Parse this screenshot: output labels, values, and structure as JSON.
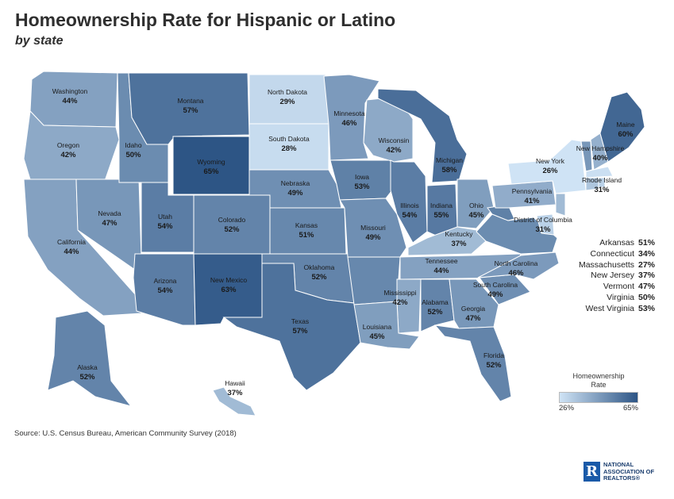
{
  "title": "Homeownership Rate for Hispanic or Latino",
  "subtitle": "by state",
  "source": "Source: U.S. Census Bureau, American Community Survey (2018)",
  "logo": {
    "line1": "NATIONAL",
    "line2": "ASSOCIATION OF",
    "line3": "REALTORS",
    "mark": "R"
  },
  "legend": {
    "title_line1": "Homeownership",
    "title_line2": "Rate",
    "min_label": "26%",
    "max_label": "65%",
    "min": 26,
    "max": 65
  },
  "colors": {
    "low": "#cfe3f5",
    "high": "#2d5585",
    "border": "#ffffff"
  },
  "states": [
    {
      "name": "Washington",
      "value": "44%"
    },
    {
      "name": "Oregon",
      "value": "42%"
    },
    {
      "name": "California",
      "value": "44%"
    },
    {
      "name": "Nevada",
      "value": "47%"
    },
    {
      "name": "Idaho",
      "value": "50%"
    },
    {
      "name": "Montana",
      "value": "57%"
    },
    {
      "name": "Wyoming",
      "value": "65%"
    },
    {
      "name": "Utah",
      "value": "54%"
    },
    {
      "name": "Arizona",
      "value": "54%"
    },
    {
      "name": "Colorado",
      "value": "52%"
    },
    {
      "name": "New Mexico",
      "value": "63%"
    },
    {
      "name": "North Dakota",
      "value": "29%"
    },
    {
      "name": "South Dakota",
      "value": "28%"
    },
    {
      "name": "Nebraska",
      "value": "49%"
    },
    {
      "name": "Kansas",
      "value": "51%"
    },
    {
      "name": "Oklahoma",
      "value": "52%"
    },
    {
      "name": "Texas",
      "value": "57%"
    },
    {
      "name": "Minnesota",
      "value": "46%"
    },
    {
      "name": "Iowa",
      "value": "53%"
    },
    {
      "name": "Missouri",
      "value": "49%"
    },
    {
      "name": "Wisconsin",
      "value": "42%"
    },
    {
      "name": "Illinois",
      "value": "54%"
    },
    {
      "name": "Michigan",
      "value": "58%"
    },
    {
      "name": "Indiana",
      "value": "55%"
    },
    {
      "name": "Ohio",
      "value": "45%"
    },
    {
      "name": "Kentucky",
      "value": "37%"
    },
    {
      "name": "Tennessee",
      "value": "44%"
    },
    {
      "name": "Mississippi",
      "value": "42%"
    },
    {
      "name": "Louisiana",
      "value": "45%"
    },
    {
      "name": "Alabama",
      "value": "52%"
    },
    {
      "name": "Georgia",
      "value": "47%"
    },
    {
      "name": "Florida",
      "value": "52%"
    },
    {
      "name": "South Carolina",
      "value": "49%"
    },
    {
      "name": "North Carolina",
      "value": "46%"
    },
    {
      "name": "Pennsylvania",
      "value": "41%"
    },
    {
      "name": "New York",
      "value": "26%"
    },
    {
      "name": "Maine",
      "value": "60%"
    },
    {
      "name": "New Hampshire",
      "value": "40%"
    },
    {
      "name": "Rhode Island",
      "value": "31%"
    },
    {
      "name": "District of Columbia",
      "value": "31%"
    },
    {
      "name": "Alaska",
      "value": "52%"
    },
    {
      "name": "Hawaii",
      "value": "37%"
    }
  ],
  "side_list": [
    {
      "name": "Arkansas",
      "value": "51%"
    },
    {
      "name": "Connecticut",
      "value": "34%"
    },
    {
      "name": "Massachusetts",
      "value": "27%"
    },
    {
      "name": "New Jersey",
      "value": "37%"
    },
    {
      "name": "Vermont",
      "value": "47%"
    },
    {
      "name": "Virginia",
      "value": "50%"
    },
    {
      "name": "West Virginia",
      "value": "53%"
    }
  ]
}
